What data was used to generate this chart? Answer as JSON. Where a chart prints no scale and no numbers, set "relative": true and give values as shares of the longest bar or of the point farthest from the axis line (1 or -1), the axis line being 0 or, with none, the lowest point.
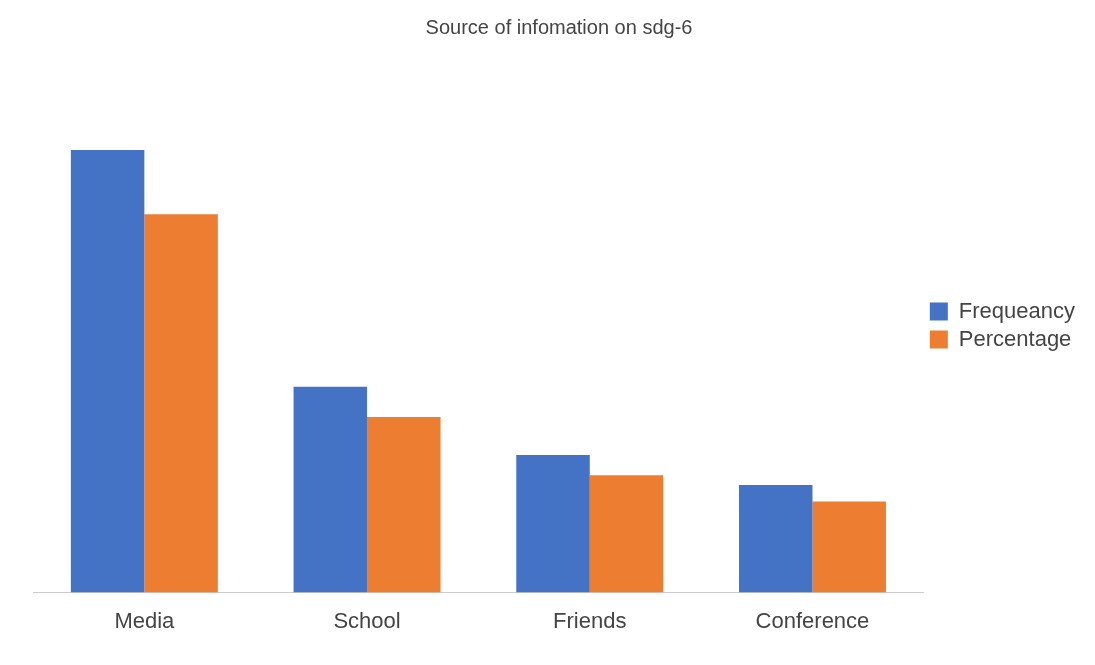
{
  "chart_data": {
    "type": "bar",
    "title": "Source of infomation on sdg-6",
    "relative": true,
    "categories": [
      "Media",
      "School",
      "Friends",
      "Conference"
    ],
    "series": [
      {
        "name": "Frequeancy",
        "color": "#4472c4",
        "values": [
          1,
          0.465,
          0.311,
          0.243
        ]
      },
      {
        "name": "Percentage",
        "color": "#ed7d31",
        "values": [
          0.855,
          0.397,
          0.265,
          0.206
        ]
      }
    ],
    "legend": "right",
    "grid": false
  }
}
